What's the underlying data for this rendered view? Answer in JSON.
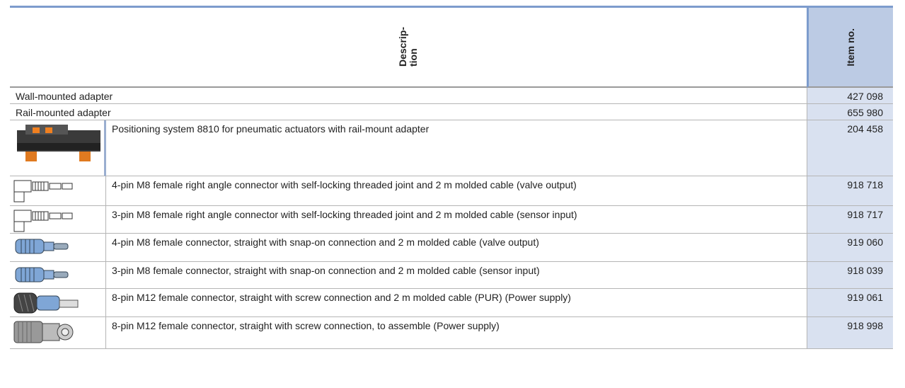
{
  "header": {
    "description_lines": [
      "Descrip-",
      "tion"
    ],
    "item_no": "Item no."
  },
  "rows": [
    {
      "description": "Wall-mounted adapter",
      "item_no": "427 098"
    },
    {
      "description": "Rail-mounted adapter",
      "item_no": "655 980"
    },
    {
      "description": "Positioning system 8810 for pneumatic actuators with rail-mount adapter",
      "item_no": "204 458"
    },
    {
      "description": "4-pin M8 female right angle connector with self-locking threaded joint and 2 m molded cable (valve output)",
      "item_no": "918 718"
    },
    {
      "description": "3-pin M8 female right angle connector with self-locking threaded joint and 2 m molded cable (sensor input)",
      "item_no": "918 717"
    },
    {
      "description": "4-pin M8 female connector, straight with snap-on connection and 2 m molded cable (valve output)",
      "item_no": "919 060"
    },
    {
      "description": "3-pin M8 female connector, straight with snap-on connection and 2 m molded cable (sensor input)",
      "item_no": "918 039"
    },
    {
      "description": "8-pin M12 female connector, straight with screw connection and 2 m molded cable (PUR) (Power supply)",
      "item_no": "919 061"
    },
    {
      "description": "8-pin M12 female connector, straight with screw connection, to assemble (Power supply)",
      "item_no": "918 998"
    }
  ]
}
